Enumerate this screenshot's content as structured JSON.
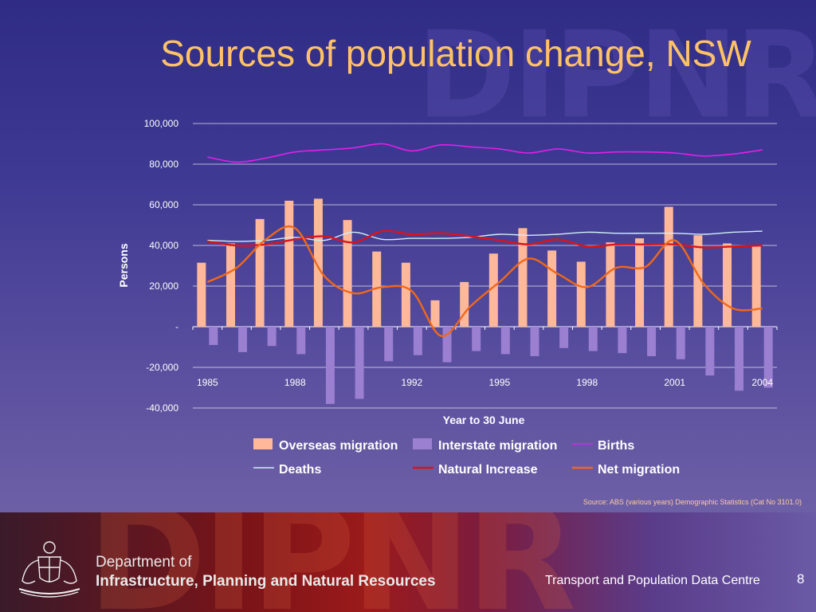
{
  "slide": {
    "title": "Sources of population change, NSW",
    "source_note": "Source: ABS (various years) Demographic Statistics (Cat No 3101.0)",
    "watermark": "DIPNR",
    "footer": {
      "dept_line1": "Department of",
      "dept_line2": "Infrastructure, Planning and Natural Resources",
      "center_text": "Transport and Population Data Centre",
      "page_number": "8"
    }
  },
  "colors": {
    "overseas": "#ffb89a",
    "interstate": "#9b7fd1",
    "births": "#e020e8",
    "deaths": "#cfeef5",
    "natural_increase": "#d8141c",
    "net_migration": "#f06818",
    "title": "#ffc266",
    "gridline": "#ffffff"
  },
  "chart_data": {
    "type": "bar",
    "xlabel": "Year to 30 June",
    "ylabel": "Persons",
    "ylim": [
      -40000,
      100000
    ],
    "yticks": [
      -40000,
      -20000,
      0,
      20000,
      40000,
      60000,
      80000,
      100000
    ],
    "ytick_labels": [
      "-40,000",
      "-20,000",
      "-",
      "20,000",
      "40,000",
      "60,000",
      "80,000",
      "100,000"
    ],
    "x": [
      1985,
      1986,
      1987,
      1988,
      1989,
      1990,
      1991,
      1992,
      1993,
      1994,
      1995,
      1996,
      1997,
      1998,
      1999,
      2000,
      2001,
      2002,
      2003,
      2004
    ],
    "xtick_labels": [
      "1985",
      "1988",
      "1992",
      "1995",
      "1998",
      "2001",
      "2004"
    ],
    "xtick_values": [
      1985,
      1988,
      1992,
      1995,
      1998,
      2001,
      2004
    ],
    "legend_position": "bottom",
    "series": [
      {
        "name": "Overseas migration",
        "kind": "bar",
        "values": [
          31500,
          41000,
          53000,
          62000,
          63000,
          52500,
          37000,
          31500,
          13000,
          22000,
          36000,
          48500,
          37500,
          32000,
          41500,
          43500,
          59000,
          45000,
          41000,
          40000
        ]
      },
      {
        "name": "Interstate migration",
        "kind": "bar",
        "values": [
          -9000,
          -12500,
          -9500,
          -13500,
          -38000,
          -35500,
          -17000,
          -14000,
          -17500,
          -12000,
          -13500,
          -14500,
          -10500,
          -12000,
          -13000,
          -14500,
          -16000,
          -24000,
          -31500,
          -30000
        ]
      },
      {
        "name": "Births",
        "kind": "line",
        "values": [
          83500,
          81000,
          83000,
          86000,
          87000,
          88000,
          90000,
          86500,
          89500,
          88500,
          87500,
          85500,
          87500,
          85500,
          86000,
          86000,
          85500,
          84000,
          85000,
          87000
        ]
      },
      {
        "name": "Deaths",
        "kind": "line",
        "values": [
          42500,
          42000,
          42500,
          44000,
          42500,
          46500,
          43000,
          43500,
          43500,
          44000,
          45500,
          45000,
          45500,
          46500,
          46000,
          46000,
          46000,
          45500,
          46500,
          47000
        ]
      },
      {
        "name": "Natural Increase",
        "kind": "line",
        "values": [
          42000,
          40000,
          40500,
          43000,
          44500,
          41500,
          47000,
          45500,
          46000,
          44500,
          42500,
          40500,
          43000,
          39500,
          40500,
          40500,
          40500,
          39000,
          39500,
          40000
        ]
      },
      {
        "name": "Net migration",
        "kind": "line",
        "values": [
          22000,
          29000,
          43000,
          48500,
          25000,
          16500,
          19500,
          17500,
          -4500,
          10000,
          22000,
          33500,
          26000,
          19500,
          29000,
          29500,
          42500,
          21000,
          9000,
          9000
        ]
      }
    ]
  }
}
